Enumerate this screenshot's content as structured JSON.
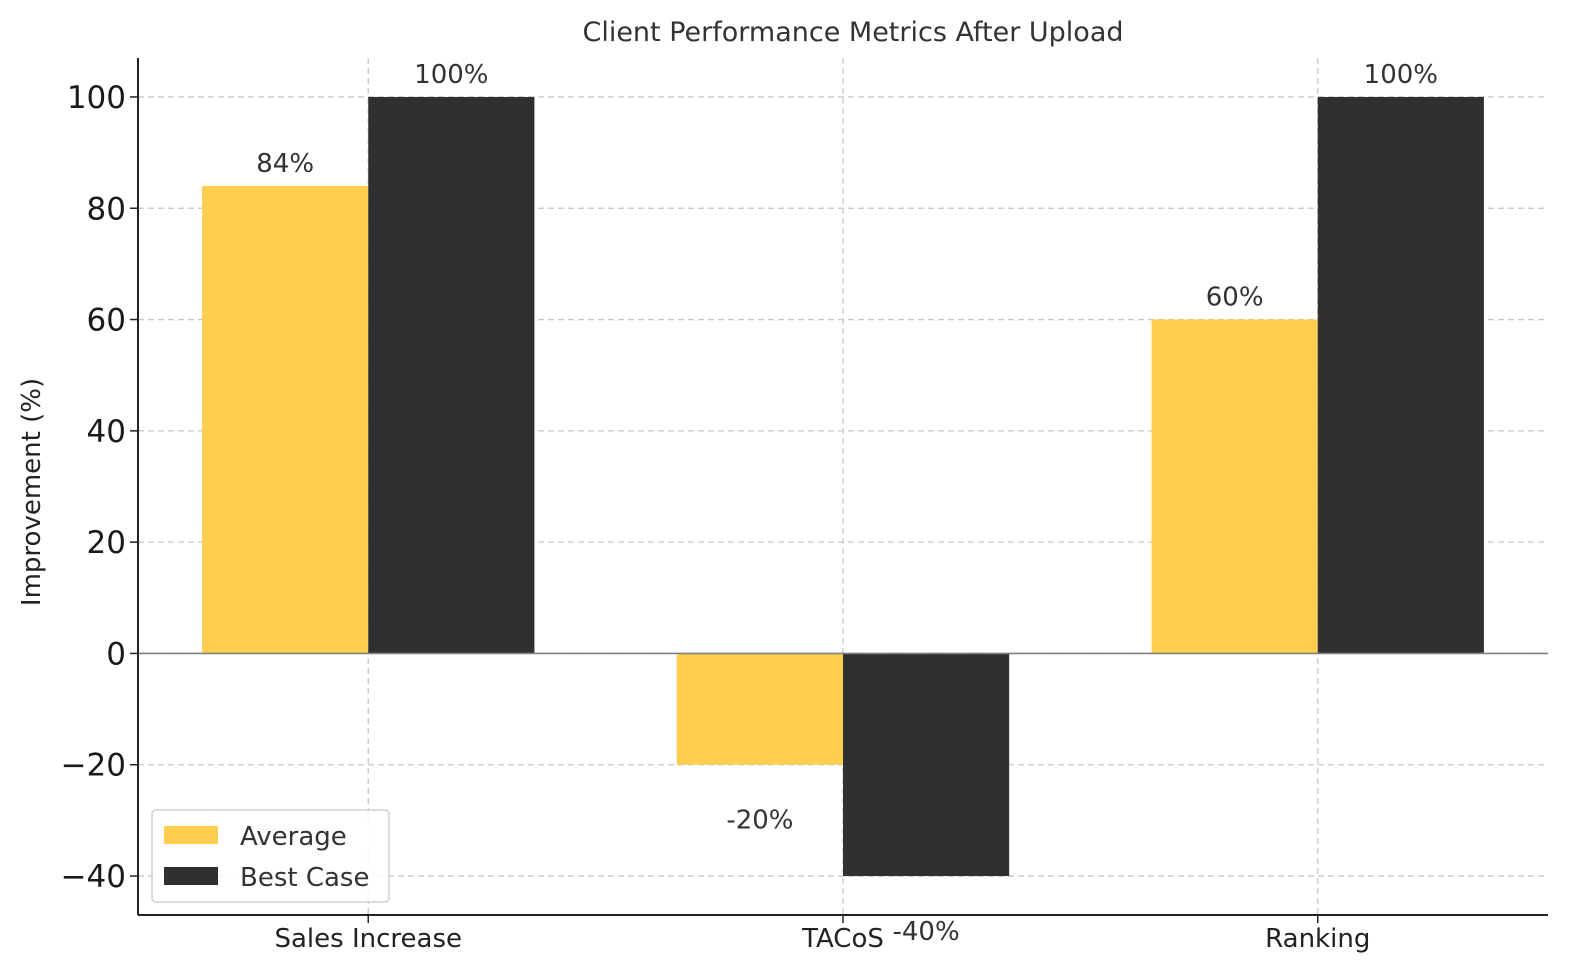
{
  "chart_data": {
    "type": "bar",
    "title": "Client Performance Metrics After Upload",
    "xlabel": "",
    "ylabel": "Improvement (%)",
    "categories": [
      "Sales Increase",
      "TACoS",
      "Ranking"
    ],
    "series": [
      {
        "name": "Average",
        "values": [
          84,
          -20,
          60
        ],
        "labels": [
          "84%",
          "-20%",
          "60%"
        ],
        "color": "#FFCE4E"
      },
      {
        "name": "Best Case",
        "values": [
          100,
          -40,
          100
        ],
        "labels": [
          "100%",
          "-40%",
          "100%"
        ],
        "color": "#303030"
      }
    ],
    "ylim": [
      -47,
      107
    ],
    "yticks": [
      -40,
      -20,
      0,
      20,
      40,
      60,
      80,
      100
    ],
    "ytick_labels": [
      "−40",
      "−20",
      "0",
      "20",
      "40",
      "60",
      "80",
      "100"
    ],
    "grid": true,
    "legend_position": "lower-left"
  }
}
